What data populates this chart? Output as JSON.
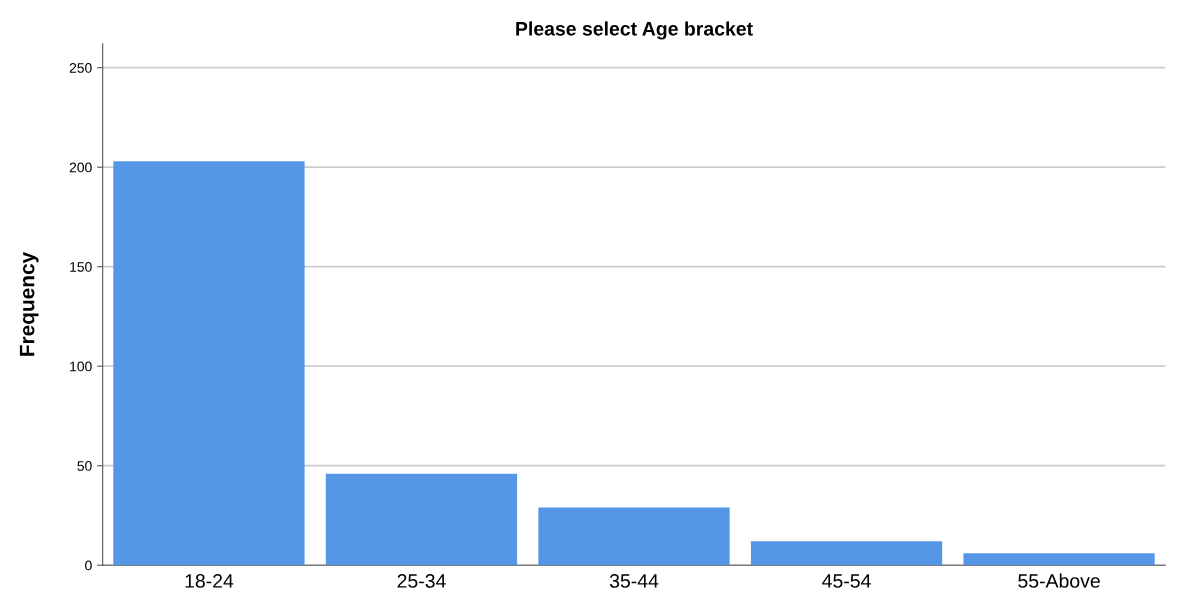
{
  "chart_data": {
    "type": "bar",
    "title": "Please select Age bracket",
    "ylabel": "Frequency",
    "categories": [
      "18-24",
      "25-34",
      "35-44",
      "45-54",
      "55-Above"
    ],
    "values": [
      203,
      46,
      29,
      12,
      6
    ],
    "color": "#5596e6",
    "ylim": [
      0,
      262
    ],
    "yticks": [
      0,
      50,
      100,
      150,
      200,
      250
    ],
    "grid": "y"
  }
}
